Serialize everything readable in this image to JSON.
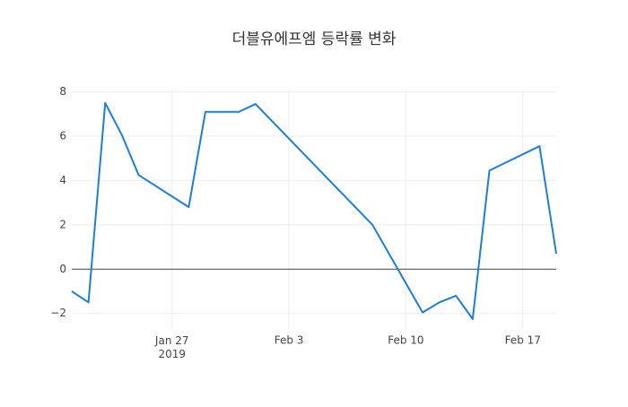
{
  "chart_data": {
    "type": "line",
    "title": "더블유에프엠 등락률 변화",
    "x": [
      "2019-01-21",
      "2019-01-22",
      "2019-01-23",
      "2019-01-24",
      "2019-01-25",
      "2019-01-28",
      "2019-01-29",
      "2019-01-31",
      "2019-02-01",
      "2019-02-08",
      "2019-02-11",
      "2019-02-12",
      "2019-02-13",
      "2019-02-14",
      "2019-02-15",
      "2019-02-18",
      "2019-02-19"
    ],
    "series": [
      {
        "color": "#1a7fe0",
        "values": [
          -1.0,
          -1.5,
          7.5,
          6.05,
          4.25,
          2.8,
          7.1,
          7.1,
          7.45,
          2.0,
          -1.95,
          -1.5,
          -1.2,
          -2.25,
          4.45,
          5.55,
          0.7
        ]
      }
    ],
    "xlim": [
      "2019-01-21",
      "2019-02-19"
    ],
    "xticks": [
      {
        "value": "2019-01-27",
        "label": "Jan 27\n2019"
      },
      {
        "value": "2019-02-03",
        "label": "Feb 3"
      },
      {
        "value": "2019-02-10",
        "label": "Feb 10"
      },
      {
        "value": "2019-02-17",
        "label": "Feb 17"
      }
    ],
    "ylim": [
      -2.7,
      8.1
    ],
    "yticks": [
      {
        "value": -2,
        "label": "−2"
      },
      0,
      2,
      4,
      6,
      8
    ],
    "grid": true
  }
}
